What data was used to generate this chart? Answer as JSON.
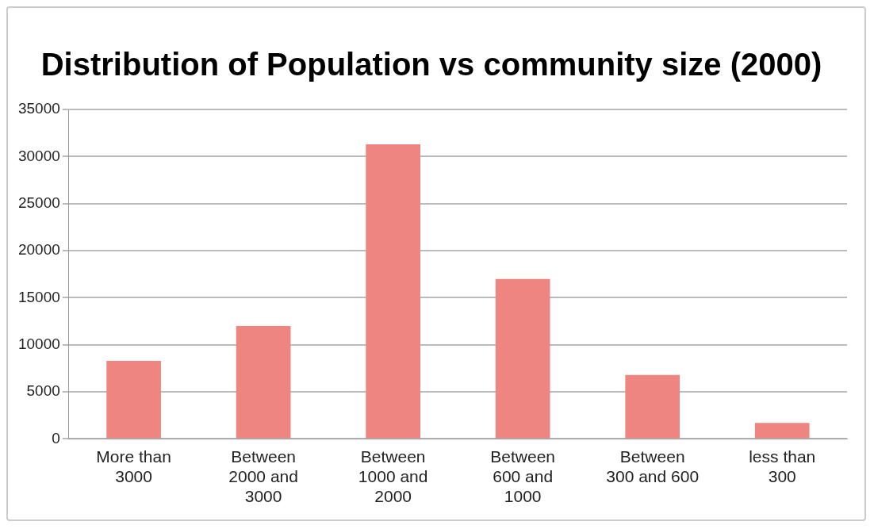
{
  "chart_data": {
    "type": "bar",
    "title": "Distribution of Population vs community size (2000)",
    "categories": [
      "More than 3000",
      "Between 2000 and 3000",
      "Between 1000 and 2000",
      "Between 600 and 1000",
      "Between 300 and 600",
      "less than 300"
    ],
    "values": [
      8300,
      12000,
      31300,
      17000,
      6800,
      1700
    ],
    "color": "#ee8580",
    "ylim": [
      0,
      35000
    ],
    "yticks": [
      0,
      5000,
      10000,
      15000,
      20000,
      25000,
      30000,
      35000
    ],
    "grid": "y"
  }
}
